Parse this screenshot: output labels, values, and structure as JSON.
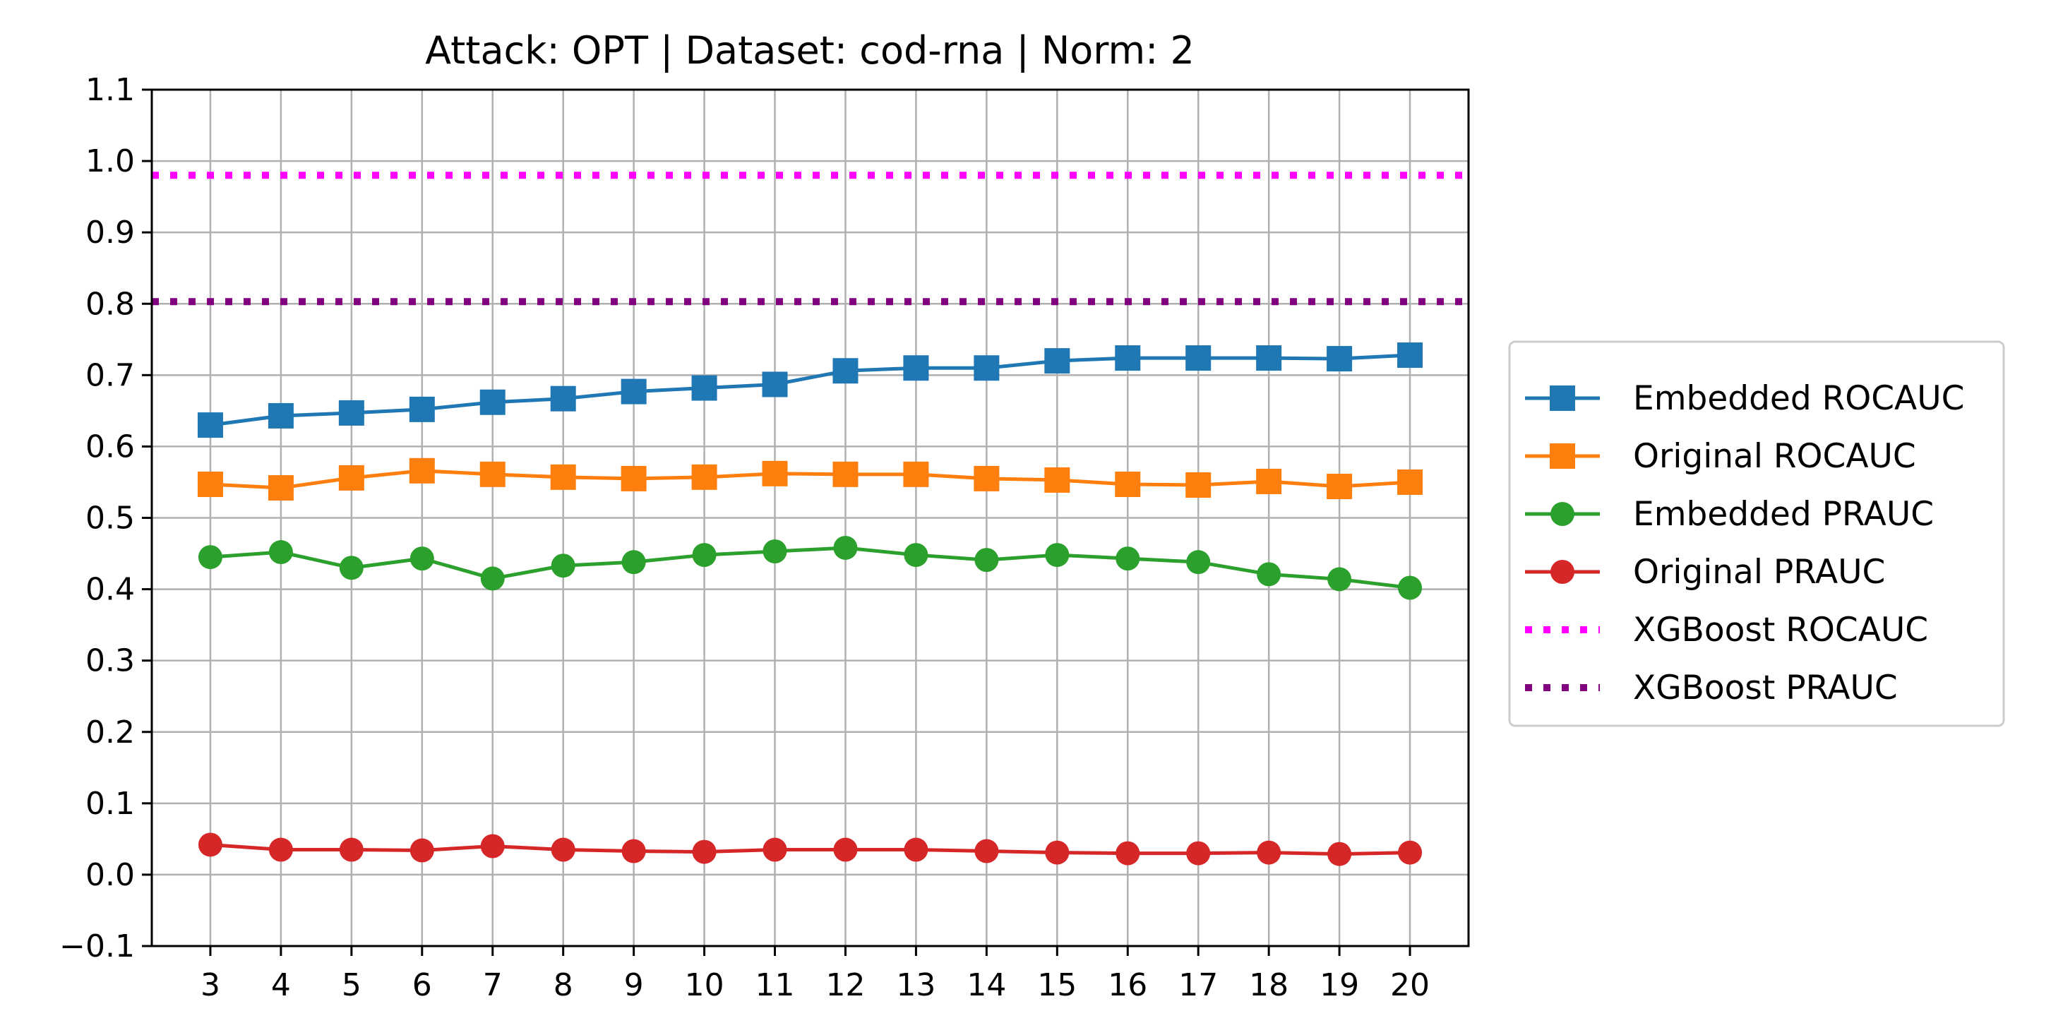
{
  "chart_data": {
    "type": "line",
    "title": "Attack: OPT | Dataset: cod-rna | Norm: 2",
    "xlabel": "",
    "ylabel": "",
    "x": [
      3,
      4,
      5,
      6,
      7,
      8,
      9,
      10,
      11,
      12,
      13,
      14,
      15,
      16,
      17,
      18,
      19,
      20
    ],
    "xlim": [
      2.17,
      20.83
    ],
    "ylim": [
      -0.1,
      1.1
    ],
    "yticks": [
      -0.1,
      0.0,
      0.1,
      0.2,
      0.3,
      0.4,
      0.5,
      0.6,
      0.7,
      0.8,
      0.9,
      1.0,
      1.1
    ],
    "ytick_labels": [
      "−0.1",
      "0.0",
      "0.1",
      "0.2",
      "0.3",
      "0.4",
      "0.5",
      "0.6",
      "0.7",
      "0.8",
      "0.9",
      "1.0",
      "1.1"
    ],
    "xtick_labels": [
      "3",
      "4",
      "5",
      "6",
      "7",
      "8",
      "9",
      "10",
      "11",
      "12",
      "13",
      "14",
      "15",
      "16",
      "17",
      "18",
      "19",
      "20"
    ],
    "grid": true,
    "legend_position": "outside-right",
    "series": [
      {
        "name": "Embedded ROCAUC",
        "color": "#1f77b4",
        "marker": "square",
        "style": "solid",
        "values": [
          0.63,
          0.643,
          0.647,
          0.652,
          0.662,
          0.667,
          0.677,
          0.682,
          0.687,
          0.706,
          0.71,
          0.71,
          0.72,
          0.724,
          0.724,
          0.724,
          0.723,
          0.728
        ]
      },
      {
        "name": "Original ROCAUC",
        "color": "#ff7f0e",
        "marker": "square",
        "style": "solid",
        "values": [
          0.547,
          0.542,
          0.556,
          0.566,
          0.561,
          0.557,
          0.555,
          0.557,
          0.562,
          0.561,
          0.561,
          0.555,
          0.553,
          0.547,
          0.546,
          0.551,
          0.544,
          0.55
        ]
      },
      {
        "name": "Embedded PRAUC",
        "color": "#2ca02c",
        "marker": "circle",
        "style": "solid",
        "values": [
          0.445,
          0.452,
          0.43,
          0.443,
          0.415,
          0.433,
          0.438,
          0.448,
          0.453,
          0.458,
          0.448,
          0.441,
          0.448,
          0.443,
          0.438,
          0.421,
          0.414,
          0.402
        ]
      },
      {
        "name": "Original PRAUC",
        "color": "#d62728",
        "marker": "circle",
        "style": "solid",
        "values": [
          0.042,
          0.035,
          0.035,
          0.034,
          0.04,
          0.035,
          0.033,
          0.032,
          0.035,
          0.035,
          0.035,
          0.033,
          0.031,
          0.03,
          0.03,
          0.031,
          0.029,
          0.031
        ]
      },
      {
        "name": "XGBoost ROCAUC",
        "color": "#ff00ff",
        "marker": "none",
        "style": "dotted",
        "constant": 0.98
      },
      {
        "name": "XGBoost PRAUC",
        "color": "#800080",
        "marker": "none",
        "style": "dotted",
        "constant": 0.803
      }
    ]
  }
}
